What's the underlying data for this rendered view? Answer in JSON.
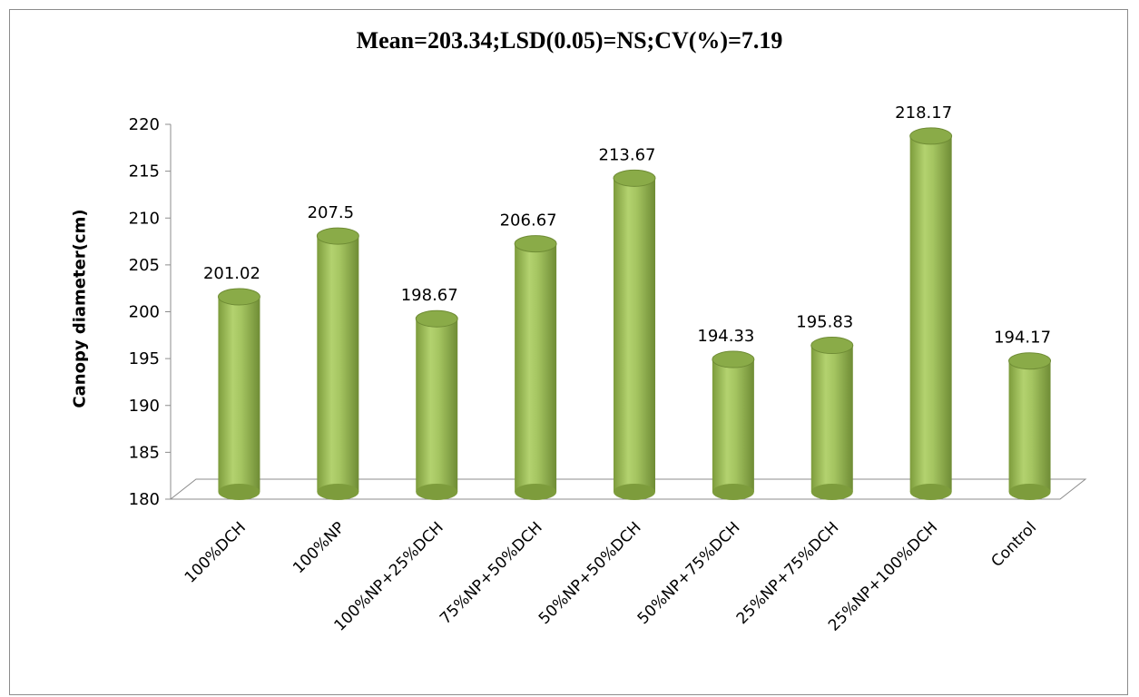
{
  "chart_data": {
    "type": "bar",
    "title": "Mean=203.34;LSD(0.05)=NS;CV(%)=7.19",
    "xlabel": "",
    "ylabel": "Canopy diameter(cm)",
    "ylim": [
      180,
      220
    ],
    "yticks": [
      "180",
      "185",
      "190",
      "195",
      "200",
      "205",
      "210",
      "215",
      "220"
    ],
    "categories": [
      "100%DCH",
      "100%NP",
      "100%NP+25%DCH",
      "75%NP+50%DCH",
      "50%NP+50%DCH",
      "50%NP+75%DCH",
      "25%NP+75%DCH",
      "25%NP+100%DCH",
      "Control"
    ],
    "values": [
      201.02,
      207.5,
      198.67,
      206.67,
      213.67,
      194.33,
      195.83,
      218.17,
      194.17
    ],
    "value_labels": [
      "201.02",
      "207.5",
      "198.67",
      "206.67",
      "213.67",
      "194.33",
      "195.83",
      "218.17",
      "194.17"
    ],
    "bar_shape": "cylinder",
    "bar_color": "#9bbb59",
    "grid": false,
    "legend": "none"
  }
}
